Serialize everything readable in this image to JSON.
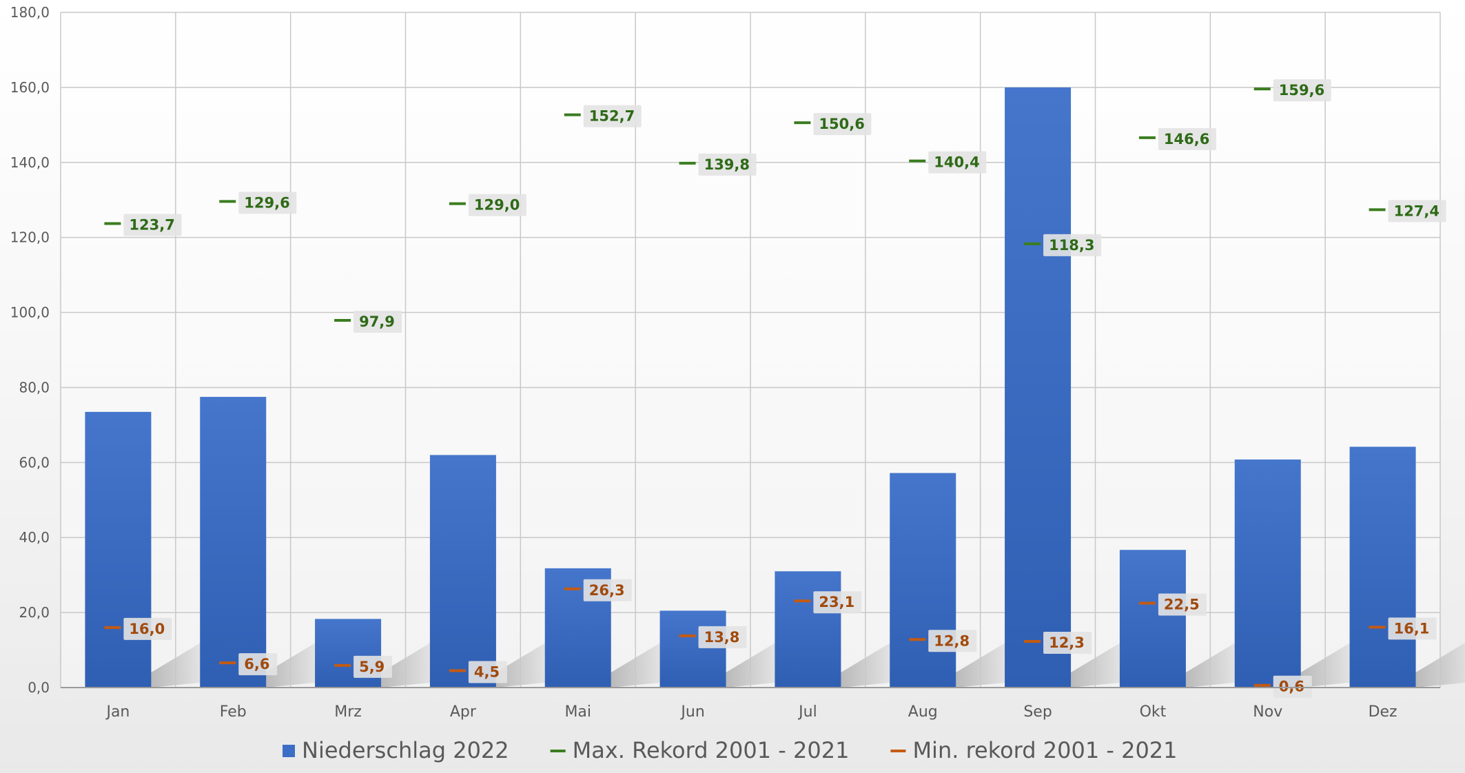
{
  "chart_data": {
    "type": "bar",
    "categories": [
      "Jan",
      "Feb",
      "Mrz",
      "Apr",
      "Mai",
      "Jun",
      "Jul",
      "Aug",
      "Sep",
      "Okt",
      "Nov",
      "Dez"
    ],
    "series": [
      {
        "name": "Niederschlag 2022",
        "kind": "bar",
        "color": "#3d6ec6",
        "values": [
          73.5,
          77.5,
          18.3,
          62.0,
          31.8,
          20.5,
          31.0,
          57.2,
          160.0,
          36.7,
          60.8,
          64.2
        ]
      },
      {
        "name": "Max. Rekord 2001 - 2021",
        "kind": "marker",
        "color": "#3a7d1f",
        "values": [
          123.7,
          129.6,
          97.9,
          129.0,
          152.7,
          139.8,
          150.6,
          140.4,
          118.3,
          146.6,
          159.6,
          127.4
        ],
        "labels": [
          "123,7",
          "129,6",
          "97,9",
          "129,0",
          "152,7",
          "139,8",
          "150,6",
          "140,4",
          "118,3",
          "146,6",
          "159,6",
          "127,4"
        ]
      },
      {
        "name": "Min. rekord 2001 - 2021",
        "kind": "marker",
        "color": "#c55a11",
        "values": [
          16.0,
          6.6,
          5.9,
          4.5,
          26.3,
          13.8,
          23.1,
          12.8,
          12.3,
          22.5,
          0.6,
          16.1
        ],
        "labels": [
          "16,0",
          "6,6",
          "5,9",
          "4,5",
          "26,3",
          "13,8",
          "23,1",
          "12,8",
          "12,3",
          "22,5",
          "0,6",
          "16,1"
        ]
      }
    ],
    "y_ticks": [
      "0,0",
      "20,0",
      "40,0",
      "60,0",
      "80,0",
      "100,0",
      "120,0",
      "140,0",
      "160,0",
      "180,0"
    ],
    "ylim": [
      0,
      180
    ],
    "y_step": 20,
    "grid": true,
    "legend_position": "bottom",
    "title": "",
    "xlabel": "",
    "ylabel": ""
  }
}
